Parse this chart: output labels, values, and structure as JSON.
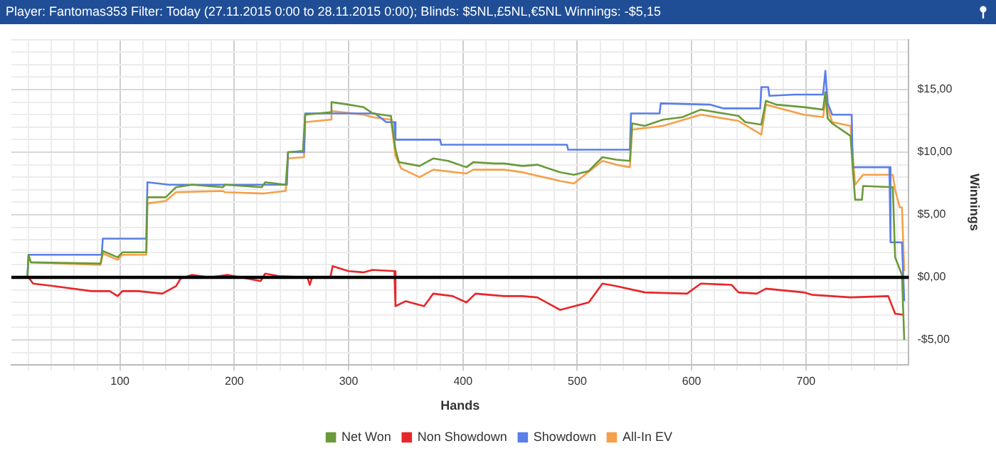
{
  "chart_data": {
    "type": "line",
    "title": "Player: Fantomas353 Filter: Today (27.11.2015 0:00 to 28.11.2015 0:00); Blinds: $5NL,£5NL,€5NL Winnings: -$5,15",
    "xlabel": "Hands",
    "ylabel": "Winnings",
    "legend": "bottom",
    "grid": true,
    "marker": "none",
    "line_style": "solid",
    "xlim": [
      5,
      790
    ],
    "ylim": [
      -7,
      19
    ],
    "xticks": [
      {
        "value": 20,
        "label": null
      },
      {
        "value": 40,
        "label": null
      },
      {
        "value": 60,
        "label": null
      },
      {
        "value": 80,
        "label": null
      },
      100,
      {
        "value": 120,
        "label": null
      },
      {
        "value": 140,
        "label": null
      },
      {
        "value": 160,
        "label": null
      },
      {
        "value": 180,
        "label": null
      },
      200,
      {
        "value": 220,
        "label": null
      },
      {
        "value": 240,
        "label": null
      },
      {
        "value": 260,
        "label": null
      },
      {
        "value": 280,
        "label": null
      },
      300,
      {
        "value": 320,
        "label": null
      },
      {
        "value": 340,
        "label": null
      },
      {
        "value": 360,
        "label": null
      },
      {
        "value": 380,
        "label": null
      },
      400,
      {
        "value": 420,
        "label": null
      },
      {
        "value": 440,
        "label": null
      },
      {
        "value": 460,
        "label": null
      },
      {
        "value": 480,
        "label": null
      },
      500,
      {
        "value": 520,
        "label": null
      },
      {
        "value": 540,
        "label": null
      },
      {
        "value": 560,
        "label": null
      },
      {
        "value": 580,
        "label": null
      },
      600,
      {
        "value": 620,
        "label": null
      },
      {
        "value": 640,
        "label": null
      },
      {
        "value": 660,
        "label": null
      },
      {
        "value": 680,
        "label": null
      },
      700,
      {
        "value": 720,
        "label": null
      },
      {
        "value": 740,
        "label": null
      },
      {
        "value": 760,
        "label": null
      },
      {
        "value": 780,
        "label": null
      }
    ],
    "yticks": [
      {
        "value": -7,
        "label": null
      },
      {
        "value": -6,
        "label": null
      },
      {
        "value": -5,
        "label": "-$5,00"
      },
      {
        "value": -4,
        "label": null
      },
      {
        "value": -3,
        "label": null
      },
      {
        "value": -2,
        "label": null
      },
      {
        "value": -1,
        "label": null
      },
      {
        "value": 0,
        "label": "$0,00"
      },
      {
        "value": 1,
        "label": null
      },
      {
        "value": 2,
        "label": null
      },
      {
        "value": 3,
        "label": null
      },
      {
        "value": 4,
        "label": null
      },
      {
        "value": 5,
        "label": "$5,00"
      },
      {
        "value": 6,
        "label": null
      },
      {
        "value": 7,
        "label": null
      },
      {
        "value": 8,
        "label": null
      },
      {
        "value": 9,
        "label": null
      },
      {
        "value": 10,
        "label": "$10,00"
      },
      {
        "value": 11,
        "label": null
      },
      {
        "value": 12,
        "label": null
      },
      {
        "value": 13,
        "label": null
      },
      {
        "value": 14,
        "label": null
      },
      {
        "value": 15,
        "label": "$15,00"
      },
      {
        "value": 16,
        "label": null
      },
      {
        "value": 17,
        "label": null
      },
      {
        "value": 18,
        "label": null
      },
      {
        "value": 19,
        "label": null
      }
    ],
    "ref_lines": [
      {
        "axis": "y",
        "value": 0,
        "color": "#000000"
      }
    ],
    "series": [
      {
        "name": "Net Won",
        "color": "#6a9a3a",
        "x": [
          5,
          19,
          20,
          22,
          83,
          85,
          98,
          102,
          123,
          124,
          140,
          149,
          163,
          190,
          192,
          224,
          227,
          245,
          247,
          260,
          262,
          284,
          285,
          300,
          313,
          321,
          337,
          341,
          344,
          362,
          374,
          387,
          403,
          409,
          428,
          436,
          452,
          465,
          485,
          497,
          510,
          522,
          534,
          546,
          548,
          559,
          575,
          592,
          608,
          628,
          641,
          647,
          661,
          665,
          674,
          698,
          715,
          717,
          719,
          723,
          739,
          743,
          749,
          750,
          776,
          778,
          784,
          786
        ],
        "values": [
          0,
          0,
          1.8,
          1.2,
          1.1,
          2.1,
          1.6,
          2.0,
          2.0,
          6.4,
          6.4,
          7.2,
          7.4,
          7.2,
          7.4,
          7.2,
          7.6,
          7.4,
          10.0,
          10.1,
          13.0,
          13.2,
          14.0,
          13.8,
          13.6,
          13.1,
          12.9,
          10.2,
          9.2,
          8.9,
          9.5,
          9.3,
          8.8,
          9.2,
          9.1,
          9.1,
          8.9,
          9.0,
          8.4,
          8.2,
          8.5,
          9.6,
          9.4,
          9.3,
          12.3,
          12.1,
          12.6,
          12.8,
          13.4,
          13.1,
          12.9,
          12.4,
          12.2,
          14.1,
          13.8,
          13.6,
          13.4,
          14.8,
          12.7,
          12.3,
          11.3,
          6.2,
          6.2,
          7.3,
          7.2,
          1.6,
          0.2,
          -5.0
        ]
      },
      {
        "name": "Non Showdown",
        "color": "#e8262a",
        "x": [
          5,
          20,
          24,
          42,
          75,
          91,
          98,
          102,
          116,
          137,
          149,
          153,
          163,
          178,
          194,
          206,
          223,
          227,
          239,
          264,
          266,
          268,
          284,
          286,
          300,
          313,
          321,
          340,
          341,
          350,
          366,
          374,
          391,
          403,
          411,
          436,
          452,
          465,
          485,
          510,
          522,
          534,
          559,
          596,
          608,
          635,
          641,
          657,
          665,
          698,
          706,
          739,
          772,
          778,
          786
        ],
        "values": [
          0,
          0,
          -0.5,
          -0.7,
          -1.1,
          -1.1,
          -1.5,
          -1.1,
          -1.1,
          -1.3,
          -0.7,
          -0.1,
          0.2,
          0,
          0.2,
          0,
          -0.3,
          0.3,
          0.1,
          0,
          -0.6,
          0,
          0,
          0.9,
          0.5,
          0.4,
          0.6,
          0.5,
          -2.3,
          -1.9,
          -2.3,
          -1.3,
          -1.5,
          -2.0,
          -1.3,
          -1.5,
          -1.5,
          -1.6,
          -2.6,
          -2.0,
          -0.5,
          -0.7,
          -1.2,
          -1.3,
          -0.5,
          -0.6,
          -1.2,
          -1.3,
          -0.9,
          -1.2,
          -1.4,
          -1.6,
          -1.5,
          -2.9,
          -3.0
        ]
      },
      {
        "name": "Showdown",
        "color": "#5b7fe8",
        "x": [
          5,
          19,
          20,
          84,
          85,
          123,
          124,
          143,
          246,
          247,
          261,
          262,
          323,
          333,
          340,
          341,
          380,
          381,
          491,
          492,
          546,
          547,
          572,
          573,
          616,
          628,
          660,
          661,
          667,
          668,
          690,
          715,
          717,
          719,
          723,
          740,
          741,
          773,
          774,
          784,
          786
        ],
        "values": [
          0,
          0,
          1.8,
          1.8,
          3.1,
          3.1,
          7.6,
          7.4,
          7.4,
          10.0,
          10.0,
          13.1,
          13.1,
          12.4,
          12.4,
          11.0,
          11.0,
          10.6,
          10.6,
          10.2,
          10.2,
          13.1,
          13.1,
          13.9,
          13.8,
          13.5,
          13.5,
          15.2,
          15.2,
          14.5,
          14.6,
          14.6,
          16.5,
          13.9,
          13.0,
          13.0,
          8.8,
          8.8,
          2.8,
          2.8,
          -1.9
        ]
      },
      {
        "name": "All-In EV",
        "color": "#f5a04a",
        "x": [
          20,
          22,
          83,
          85,
          98,
          102,
          123,
          124,
          140,
          149,
          190,
          192,
          226,
          245,
          247,
          261,
          262,
          284,
          285,
          313,
          321,
          337,
          341,
          346,
          362,
          374,
          403,
          409,
          436,
          452,
          485,
          497,
          522,
          534,
          546,
          548,
          575,
          608,
          641,
          661,
          665,
          698,
          715,
          717,
          723,
          739,
          743,
          750,
          776,
          778,
          782,
          784,
          786
        ],
        "values": [
          1.7,
          1.2,
          1.0,
          1.9,
          1.4,
          1.8,
          1.8,
          5.9,
          6.1,
          6.8,
          6.9,
          6.8,
          6.7,
          6.9,
          9.5,
          9.6,
          12.4,
          12.6,
          13.3,
          13.0,
          12.8,
          12.6,
          9.7,
          8.7,
          8.0,
          8.6,
          8.3,
          8.6,
          8.6,
          8.4,
          7.7,
          7.5,
          9.3,
          9.0,
          8.8,
          11.8,
          12.1,
          13.0,
          12.5,
          11.4,
          13.8,
          13.0,
          12.8,
          14.1,
          12.4,
          12.1,
          7.4,
          8.2,
          8.2,
          7.0,
          5.6,
          5.6,
          0.5
        ]
      }
    ]
  }
}
